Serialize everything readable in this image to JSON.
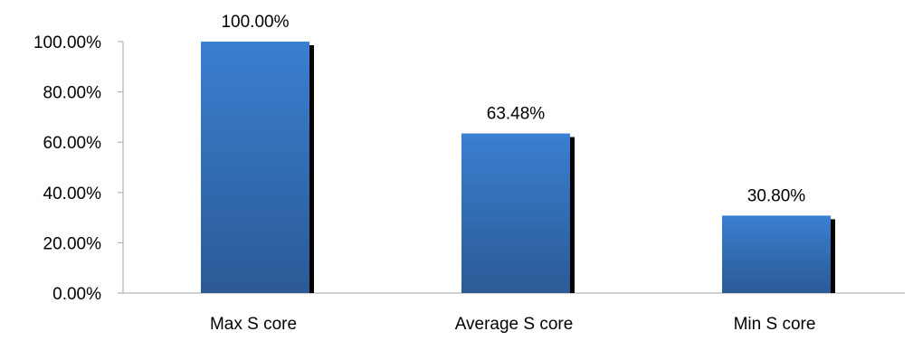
{
  "chart_data": {
    "type": "bar",
    "categories": [
      "Max S core",
      "Average S core",
      "Min S core"
    ],
    "values": [
      100.0,
      63.48,
      30.8
    ],
    "data_labels": [
      "100.00%",
      "63.48%",
      "30.80%"
    ],
    "ylim": [
      0,
      100
    ],
    "yticks": [
      0,
      20,
      40,
      60,
      80,
      100
    ],
    "ytick_labels": [
      "0.00%",
      "20.00%",
      "40.00%",
      "60.00%",
      "80.00%",
      "100.00%"
    ],
    "grid": false,
    "legend": "none",
    "colors": {
      "bar_top": "#3a7fd0",
      "bar_bottom": "#2b5a96",
      "shadow": "#000000",
      "axis": "#a6a6a6"
    }
  }
}
